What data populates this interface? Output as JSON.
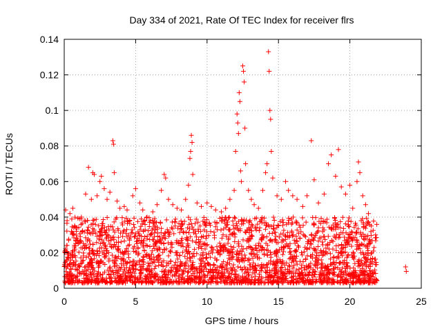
{
  "chart_data": {
    "type": "scatter",
    "title": "Day 334 of 2021, Rate Of TEC Index for receiver flrs",
    "xlabel": "GPS time / hours",
    "ylabel": "ROTI / TECUs",
    "xlim": [
      0,
      25
    ],
    "ylim": [
      0,
      0.14
    ],
    "x_ticks": [
      "0",
      "5",
      "10",
      "15",
      "20",
      "25"
    ],
    "y_ticks": [
      "0",
      "0.02",
      "0.04",
      "0.06",
      "0.08",
      "0.1",
      "0.12",
      "0.14"
    ],
    "grid": true,
    "marker": "+",
    "color": "#ff0000",
    "series": [
      {
        "points": [
          [
            0.1,
            0.044
          ],
          [
            0.2,
            0.038
          ],
          [
            0.4,
            0.042
          ],
          [
            0.6,
            0.045
          ],
          [
            0.9,
            0.034
          ],
          [
            1.2,
            0.04
          ],
          [
            1.5,
            0.053
          ],
          [
            1.7,
            0.068
          ],
          [
            1.9,
            0.05
          ],
          [
            2.0,
            0.065
          ],
          [
            2.1,
            0.064
          ],
          [
            2.3,
            0.052
          ],
          [
            2.5,
            0.06
          ],
          [
            2.6,
            0.063
          ],
          [
            2.8,
            0.056
          ],
          [
            3.0,
            0.05
          ],
          [
            3.2,
            0.054
          ],
          [
            3.4,
            0.083
          ],
          [
            3.45,
            0.081
          ],
          [
            3.5,
            0.065
          ],
          [
            3.7,
            0.049
          ],
          [
            3.9,
            0.045
          ],
          [
            4.2,
            0.046
          ],
          [
            4.4,
            0.044
          ],
          [
            4.8,
            0.052
          ],
          [
            5.0,
            0.056
          ],
          [
            5.3,
            0.048
          ],
          [
            5.5,
            0.044
          ],
          [
            5.8,
            0.04
          ],
          [
            6.2,
            0.043
          ],
          [
            6.5,
            0.047
          ],
          [
            6.8,
            0.055
          ],
          [
            7.0,
            0.064
          ],
          [
            7.1,
            0.062
          ],
          [
            7.3,
            0.05
          ],
          [
            7.6,
            0.047
          ],
          [
            7.9,
            0.045
          ],
          [
            8.2,
            0.044
          ],
          [
            8.5,
            0.05
          ],
          [
            8.7,
            0.058
          ],
          [
            8.8,
            0.073
          ],
          [
            8.85,
            0.077
          ],
          [
            8.9,
            0.086
          ],
          [
            8.95,
            0.082
          ],
          [
            9.0,
            0.064
          ],
          [
            9.3,
            0.048
          ],
          [
            9.6,
            0.046
          ],
          [
            10.0,
            0.048
          ],
          [
            10.3,
            0.046
          ],
          [
            10.6,
            0.044
          ],
          [
            11.0,
            0.043
          ],
          [
            11.3,
            0.045
          ],
          [
            11.6,
            0.05
          ],
          [
            11.9,
            0.055
          ],
          [
            12.0,
            0.077
          ],
          [
            12.1,
            0.098
          ],
          [
            12.15,
            0.093
          ],
          [
            12.2,
            0.087
          ],
          [
            12.25,
            0.11
          ],
          [
            12.3,
            0.105
          ],
          [
            12.35,
            0.066
          ],
          [
            12.4,
            0.06
          ],
          [
            12.5,
            0.125
          ],
          [
            12.55,
            0.122
          ],
          [
            12.6,
            0.116
          ],
          [
            12.65,
            0.09
          ],
          [
            12.7,
            0.07
          ],
          [
            12.9,
            0.055
          ],
          [
            13.1,
            0.05
          ],
          [
            13.3,
            0.047
          ],
          [
            13.6,
            0.045
          ],
          [
            13.9,
            0.055
          ],
          [
            14.1,
            0.065
          ],
          [
            14.2,
            0.07
          ],
          [
            14.3,
            0.133
          ],
          [
            14.35,
            0.122
          ],
          [
            14.4,
            0.1
          ],
          [
            14.45,
            0.095
          ],
          [
            14.5,
            0.077
          ],
          [
            14.6,
            0.062
          ],
          [
            14.9,
            0.052
          ],
          [
            15.2,
            0.05
          ],
          [
            15.5,
            0.06
          ],
          [
            15.7,
            0.055
          ],
          [
            16.0,
            0.052
          ],
          [
            16.3,
            0.05
          ],
          [
            16.7,
            0.046
          ],
          [
            17.0,
            0.052
          ],
          [
            17.3,
            0.083
          ],
          [
            17.5,
            0.061
          ],
          [
            17.8,
            0.048
          ],
          [
            18.2,
            0.053
          ],
          [
            18.5,
            0.07
          ],
          [
            18.7,
            0.075
          ],
          [
            19.0,
            0.063
          ],
          [
            19.2,
            0.078
          ],
          [
            19.4,
            0.057
          ],
          [
            19.7,
            0.053
          ],
          [
            20.0,
            0.058
          ],
          [
            20.2,
            0.045
          ],
          [
            20.5,
            0.06
          ],
          [
            20.6,
            0.071
          ],
          [
            20.7,
            0.065
          ],
          [
            20.9,
            0.052
          ],
          [
            21.1,
            0.047
          ],
          [
            21.3,
            0.042
          ],
          [
            21.5,
            0.035
          ],
          [
            21.8,
            0.03
          ],
          [
            23.9,
            0.012
          ],
          [
            23.95,
            0.0095
          ]
        ]
      }
    ],
    "dense_band": {
      "x_range": [
        0,
        21.9
      ],
      "typical_min": 0.003,
      "typical_max": 0.04,
      "note_hint": "dense cloud of points"
    }
  }
}
